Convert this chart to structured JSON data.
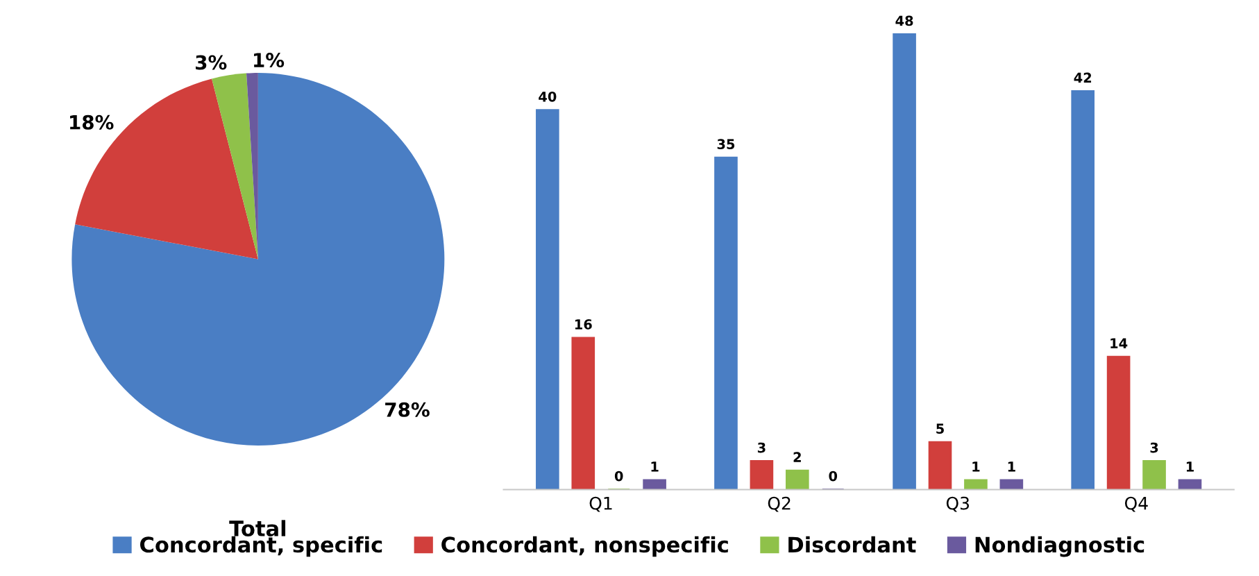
{
  "chart_data": [
    {
      "type": "pie",
      "xlabel": "Total",
      "categories": [
        null,
        null,
        null,
        null
      ],
      "values": [
        78,
        18,
        3,
        1
      ],
      "value_labels": [
        "78%",
        "18%",
        "3%",
        "1%"
      ],
      "colors": [
        "#4a7ec4",
        "#d13f3c",
        "#8fc14a",
        "#6a5a9e"
      ]
    },
    {
      "type": "bar",
      "categories": [
        "Q1",
        "Q2",
        "Q3",
        "Q4"
      ],
      "data_labels": true,
      "grid": false,
      "legend": "bottom",
      "series": [
        {
          "name": "Concordant, specific",
          "color": "#4a7ec4",
          "values": [
            40,
            35,
            48,
            42
          ]
        },
        {
          "name": "Concordant, nonspecific",
          "color": "#d13f3c",
          "values": [
            16,
            3,
            5,
            14
          ]
        },
        {
          "name": "Discordant",
          "color": "#8fc14a",
          "values": [
            0,
            2,
            1,
            3
          ]
        },
        {
          "name": "Nondiagnostic",
          "color": "#6a5a9e",
          "values": [
            1,
            0,
            1,
            1
          ]
        }
      ]
    }
  ]
}
